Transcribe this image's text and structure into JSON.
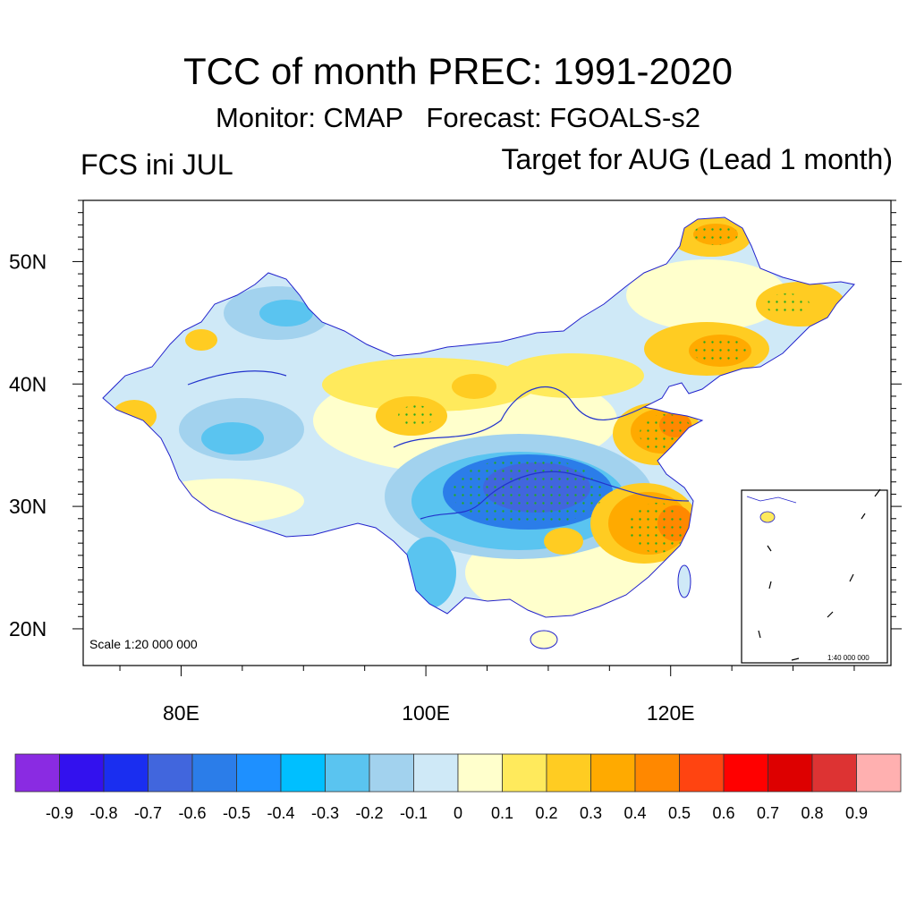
{
  "header": {
    "title": "TCC of month PREC: 1991-2020",
    "subtitle": "Monitor: CMAP   Forecast: FGOALS-s2",
    "left_label": "FCS ini JUL",
    "right_label": "Target for AUG (Lead 1 month)"
  },
  "map": {
    "lon_range": [
      72,
      138
    ],
    "lat_range": [
      17,
      55
    ],
    "lat_ticks": [
      {
        "value": 20,
        "label": "20N"
      },
      {
        "value": 30,
        "label": "30N"
      },
      {
        "value": 40,
        "label": "40N"
      },
      {
        "value": 50,
        "label": "50N"
      }
    ],
    "lon_ticks": [
      {
        "value": 80,
        "label": "80E"
      },
      {
        "value": 100,
        "label": "100E"
      },
      {
        "value": 120,
        "label": "120E"
      }
    ],
    "scale_text": "Scale 1:20 000 000",
    "inset_scale_text": "1:40 000 000",
    "stipple_color": "#22aa22",
    "regions": [
      {
        "name": "northeast-positive",
        "value": 0.3
      },
      {
        "name": "inner-mongolia-positive",
        "value": 0.2
      },
      {
        "name": "shandong-positive",
        "value": 0.4
      },
      {
        "name": "lower-yangtze-positive",
        "value": 0.4
      },
      {
        "name": "sichuan-basin-negative",
        "value": -0.6
      },
      {
        "name": "xinjiang-negative",
        "value": -0.3
      },
      {
        "name": "southwest-tip-positive",
        "value": 0.3
      }
    ]
  },
  "colorbar": {
    "labels": [
      "-0.9",
      "-0.8",
      "-0.7",
      "-0.6",
      "-0.5",
      "-0.4",
      "-0.3",
      "-0.2",
      "-0.1",
      "0",
      "0.1",
      "0.2",
      "0.3",
      "0.4",
      "0.5",
      "0.6",
      "0.7",
      "0.8",
      "0.9"
    ],
    "colors": [
      "#8a2be2",
      "#3311ee",
      "#1a2ef0",
      "#4166dd",
      "#2b7de9",
      "#1e90ff",
      "#00bfff",
      "#5ac4f0",
      "#a2d2ee",
      "#cfe9f7",
      "#ffffcc",
      "#ffea5c",
      "#ffcc22",
      "#ffaa00",
      "#ff8800",
      "#ff4411",
      "#ff0000",
      "#dd0000",
      "#dd3333",
      "#ffb0b0"
    ]
  }
}
